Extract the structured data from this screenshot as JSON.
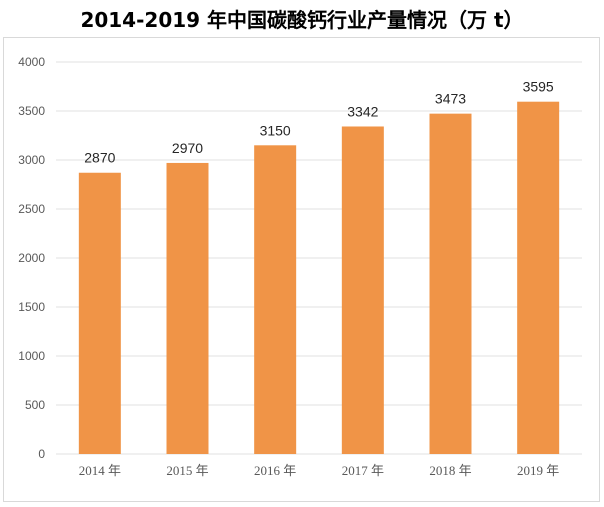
{
  "chart_data": {
    "type": "bar",
    "title": "2014-2019 年中国碳酸钙行业产量情况（万 t）",
    "categories": [
      "2014 年",
      "2015 年",
      "2016 年",
      "2017 年",
      "2018 年",
      "2019 年"
    ],
    "values": [
      2870,
      2970,
      3150,
      3342,
      3473,
      3595
    ],
    "y_ticks": [
      "0",
      "500",
      "1000",
      "1500",
      "2000",
      "2500",
      "3000",
      "3500",
      "4000"
    ],
    "ylim": [
      0,
      4000
    ],
    "grid": true,
    "data_labels": true,
    "bar_color": "#f09447",
    "grid_color": "#e0e0e0"
  }
}
